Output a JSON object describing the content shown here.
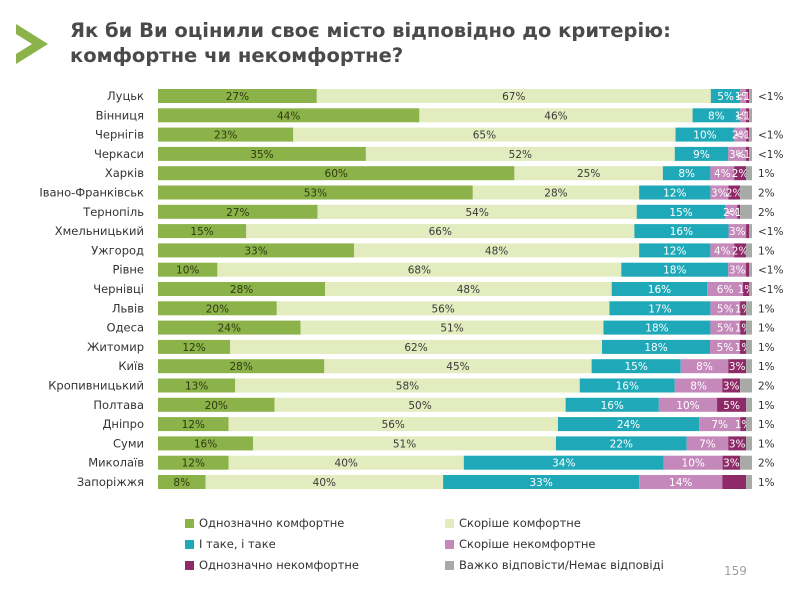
{
  "title": "Як би Ви оцінили своє місто відповідно до критерію: комфортне чи некомфортне?",
  "page_number": "159",
  "colors": {
    "Однозначно комфортне": "#8cb24a",
    "Скоріше комфортне": "#e2ecbe",
    "І таке, і таке": "#1fa9b8",
    "Скоріше некомфортне": "#c489ba",
    "Однозначно некомфортне": "#8e2a68",
    "Важко відповісти/Немає відповіді": "#a8aaa8"
  },
  "chart_data": {
    "type": "bar",
    "stacked": true,
    "orientation": "horizontal",
    "legend_position": "bottom",
    "categories": [
      "Луцьк",
      "Вінниця",
      "Чернігів",
      "Черкаси",
      "Харків",
      "Івано-Франківськ",
      "Тернопіль",
      "Хмельницький",
      "Ужгород",
      "Рівне",
      "Чернівці",
      "Львів",
      "Одеса",
      "Житомир",
      "Київ",
      "Кропивницький",
      "Полтава",
      "Дніпро",
      "Суми",
      "Миколаїв",
      "Запоріжжя"
    ],
    "series": [
      {
        "name": "Однозначно комфортне",
        "values": [
          27,
          44,
          23,
          35,
          60,
          53,
          27,
          15,
          33,
          10,
          28,
          20,
          24,
          12,
          28,
          13,
          20,
          12,
          16,
          12,
          8
        ],
        "labels": [
          "27%",
          "44%",
          "23%",
          "35%",
          "60%",
          "53%",
          "27%",
          "15%",
          "33%",
          "10%",
          "28%",
          "20%",
          "24%",
          "12%",
          "28%",
          "13%",
          "20%",
          "12%",
          "16%",
          "12%",
          "8%"
        ]
      },
      {
        "name": "Скоріше комфортне",
        "values": [
          67,
          46,
          65,
          52,
          25,
          28,
          54,
          66,
          48,
          68,
          48,
          56,
          51,
          62,
          45,
          58,
          50,
          56,
          51,
          40,
          40
        ],
        "labels": [
          "67%",
          "46%",
          "65%",
          "52%",
          "25%",
          "28%",
          "54%",
          "66%",
          "48%",
          "68%",
          "48%",
          "56%",
          "51%",
          "62%",
          "45%",
          "58%",
          "50%",
          "56%",
          "51%",
          "40%",
          "40%"
        ]
      },
      {
        "name": "І таке, і таке",
        "values": [
          5,
          8,
          10,
          9,
          8,
          12,
          15,
          16,
          12,
          18,
          16,
          17,
          18,
          18,
          15,
          16,
          16,
          24,
          22,
          34,
          33
        ],
        "labels": [
          "5%",
          "8%",
          "10%",
          "9%",
          "8%",
          "12%",
          "15%",
          "16%",
          "12%",
          "18%",
          "16%",
          "17%",
          "18%",
          "18%",
          "15%",
          "16%",
          "16%",
          "24%",
          "22%",
          "34%",
          "33%"
        ]
      },
      {
        "name": "Скоріше некомфортне",
        "values": [
          1,
          1,
          2,
          3,
          4,
          3,
          2,
          3,
          4,
          3,
          6,
          5,
          5,
          5,
          8,
          8,
          10,
          7,
          7,
          10,
          14
        ],
        "labels": [
          "1%",
          "1%",
          "2%",
          "3%",
          "4%",
          "3%",
          "2%",
          "3%",
          "4%",
          "3%",
          "6%",
          "5%",
          "5%",
          "5%",
          "8%",
          "8%",
          "10%",
          "7%",
          "7%",
          "10%",
          "14%"
        ]
      },
      {
        "name": "Однозначно некомфортне",
        "values": [
          0.5,
          0.5,
          0.5,
          0.5,
          2,
          2,
          0.5,
          0.5,
          2,
          0.5,
          1,
          1,
          1,
          1,
          3,
          3,
          5,
          1,
          3,
          3,
          4
        ],
        "labels": [
          "<1%",
          "<1%",
          "<1%",
          "<1%",
          "2%",
          "2%",
          "<1%",
          "",
          "2%",
          "",
          "1%",
          "1%",
          "1%",
          "1%",
          "3%",
          "3%",
          "5%",
          "1%",
          "3%",
          "3%",
          ""
        ]
      },
      {
        "name": "Важко відповісти/Немає відповіді",
        "values": [
          0.5,
          0.5,
          0.5,
          0.5,
          1,
          2,
          2,
          0.5,
          1,
          0.5,
          0.5,
          1,
          1,
          1,
          1,
          2,
          1,
          1,
          1,
          2,
          1
        ],
        "labels": [
          "<1%",
          "",
          "<1%",
          "<1%",
          "1%",
          "2%",
          "2%",
          "<1%",
          "1%",
          "<1%",
          "<1%",
          "1%",
          "1%",
          "1%",
          "1%",
          "2%",
          "1%",
          "1%",
          "1%",
          "2%",
          "1%"
        ]
      }
    ]
  }
}
